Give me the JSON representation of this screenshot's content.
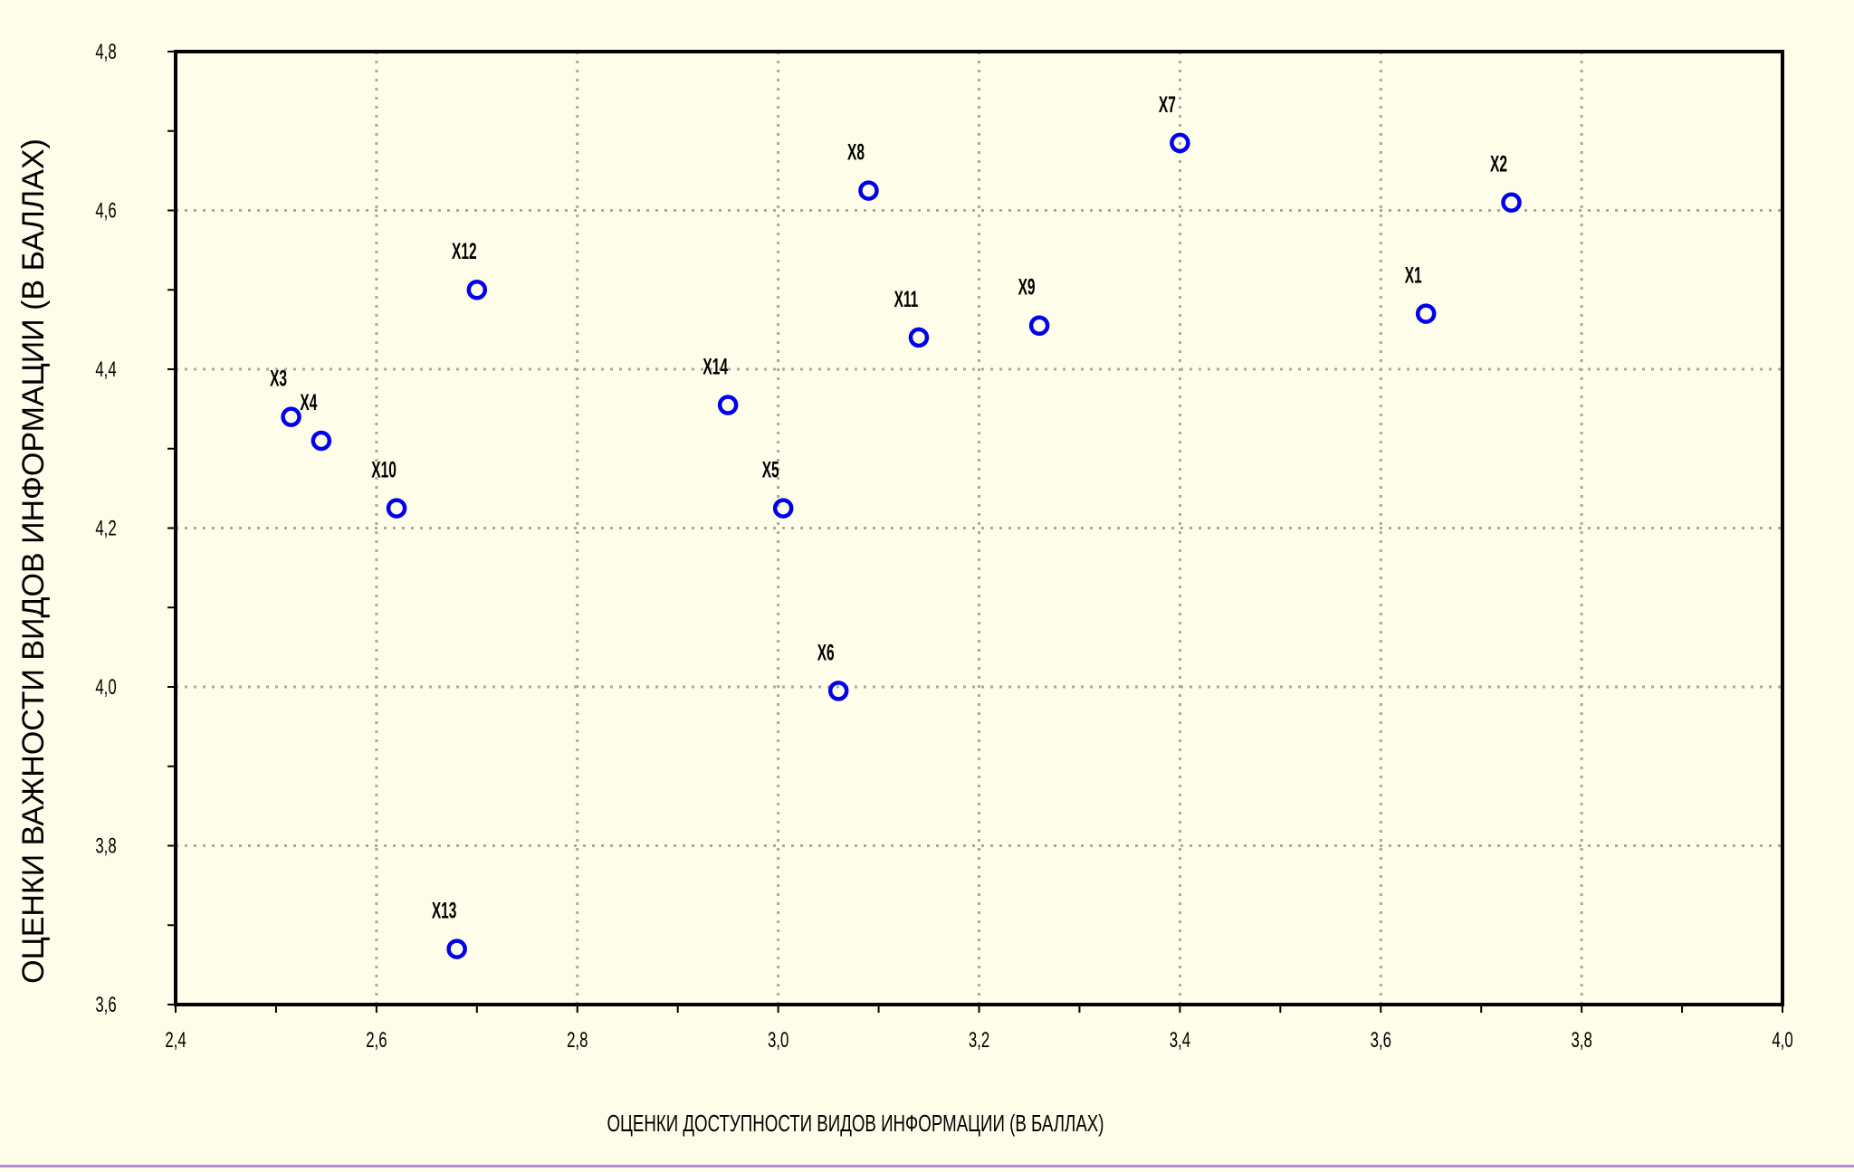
{
  "chart_data": {
    "type": "scatter",
    "title": "",
    "xlabel": "ОЦЕНКИ ДОСТУПНОСТИ ВИДОВ ИНФОРМАЦИИ (В БАЛЛАХ)",
    "ylabel": "ОЦЕНКИ ВАЖНОСТИ ВИДОВ ИНФОРМАЦИИ (В БАЛЛАХ)",
    "xlim": [
      2.4,
      4.0
    ],
    "ylim": [
      3.6,
      4.8
    ],
    "xticks": [
      2.4,
      2.6,
      2.8,
      3.0,
      3.2,
      3.4,
      3.6,
      3.8,
      4.0
    ],
    "yticks": [
      3.6,
      3.8,
      4.0,
      4.2,
      4.4,
      4.6,
      4.8
    ],
    "xtick_labels": [
      "2,4",
      "2,6",
      "2,8",
      "3,0",
      "3,2",
      "3,4",
      "3,6",
      "3,8",
      "4,0"
    ],
    "ytick_labels": [
      "3,6",
      "3,8",
      "4,0",
      "4,2",
      "4,4",
      "4,6",
      "4,8"
    ],
    "grid": true,
    "marker_color": "#0000ee",
    "points": [
      {
        "label": "X1",
        "x": 3.645,
        "y": 4.47
      },
      {
        "label": "X2",
        "x": 3.73,
        "y": 4.61
      },
      {
        "label": "X3",
        "x": 2.515,
        "y": 4.34
      },
      {
        "label": "X4",
        "x": 2.545,
        "y": 4.31
      },
      {
        "label": "X5",
        "x": 3.005,
        "y": 4.225
      },
      {
        "label": "X6",
        "x": 3.06,
        "y": 3.995
      },
      {
        "label": "X7",
        "x": 3.4,
        "y": 4.685
      },
      {
        "label": "X8",
        "x": 3.09,
        "y": 4.625
      },
      {
        "label": "X9",
        "x": 3.26,
        "y": 4.455
      },
      {
        "label": "X10",
        "x": 2.62,
        "y": 4.225
      },
      {
        "label": "X11",
        "x": 3.14,
        "y": 4.44
      },
      {
        "label": "X12",
        "x": 2.7,
        "y": 4.5
      },
      {
        "label": "X13",
        "x": 2.68,
        "y": 3.67
      },
      {
        "label": "X14",
        "x": 2.95,
        "y": 4.355
      }
    ]
  }
}
